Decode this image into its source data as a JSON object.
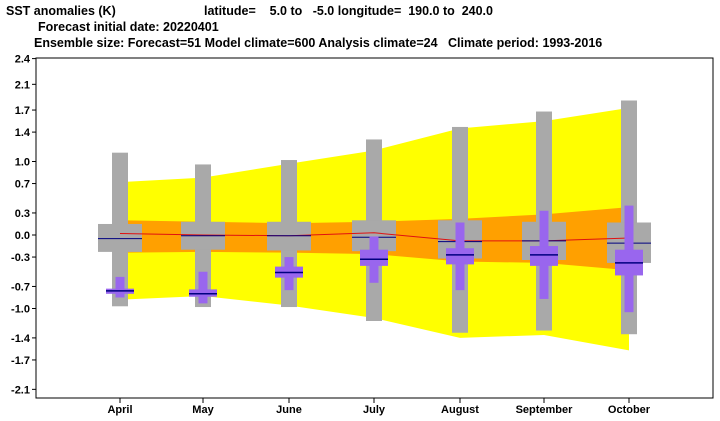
{
  "header": {
    "line1_title": "SST anomalies (K)",
    "line1_latitude": "latitude=    5.0 to   -5.0 longitude=  190.0 to  240.0",
    "line2": "Forecast initial date: 20220401",
    "line3": "Ensemble size: Forecast=51 Model climate=600 Analysis climate=24   Climate period: 1993-2016"
  },
  "colors": {
    "climate_outer": "#ffff00",
    "climate_inner": "#ffa000",
    "climate_median": "#e01010",
    "model_box": "#a9a9a9",
    "forecast_box": "#9966ee",
    "median_line": "#000080"
  },
  "chart_data": {
    "type": "box",
    "categories": [
      "April",
      "May",
      "June",
      "July",
      "August",
      "September",
      "October"
    ],
    "ylim": [
      -2.45,
      2.55
    ],
    "yticks": [
      "2.4",
      "2.1",
      "1.7",
      "1.4",
      "1.0",
      "0.7",
      "0.3",
      "0.0",
      "-0.3",
      "-0.7",
      "-1.0",
      "-1.4",
      "-1.7",
      "-2.1"
    ],
    "ytick_values": [
      2.4,
      2.05,
      1.7,
      1.4,
      1.0,
      0.7,
      0.3,
      0.0,
      -0.3,
      -0.7,
      -1.0,
      -1.4,
      -1.7,
      -2.1
    ],
    "climate_band_outer": {
      "upper": [
        0.72,
        0.78,
        0.97,
        1.15,
        1.45,
        1.55,
        1.73
      ],
      "lower": [
        -0.88,
        -0.83,
        -0.96,
        -1.13,
        -1.4,
        -1.36,
        -1.57
      ]
    },
    "climate_band_inner": {
      "upper": [
        0.2,
        0.18,
        0.16,
        0.18,
        0.22,
        0.28,
        0.38
      ],
      "lower": [
        -0.24,
        -0.23,
        -0.24,
        -0.26,
        -0.36,
        -0.38,
        -0.48
      ]
    },
    "climate_median": [
      0.02,
      0.0,
      -0.01,
      0.03,
      -0.08,
      -0.08,
      -0.04
    ],
    "model_climate": [
      {
        "whisker_low": -0.97,
        "box_low": -0.23,
        "median": -0.05,
        "box_high": 0.15,
        "whisker_high": 1.12
      },
      {
        "whisker_low": -0.98,
        "box_low": -0.2,
        "median": -0.01,
        "box_high": 0.18,
        "whisker_high": 0.96
      },
      {
        "whisker_low": -0.98,
        "box_low": -0.21,
        "median": -0.01,
        "box_high": 0.18,
        "whisker_high": 1.02
      },
      {
        "whisker_low": -1.17,
        "box_low": -0.22,
        "median": -0.03,
        "box_high": 0.2,
        "whisker_high": 1.3
      },
      {
        "whisker_low": -1.33,
        "box_low": -0.32,
        "median": -0.09,
        "box_high": 0.2,
        "whisker_high": 1.47
      },
      {
        "whisker_low": -1.3,
        "box_low": -0.34,
        "median": -0.08,
        "box_high": 0.18,
        "whisker_high": 1.68
      },
      {
        "whisker_low": -1.35,
        "box_low": -0.38,
        "median": -0.11,
        "box_high": 0.17,
        "whisker_high": 1.83
      }
    ],
    "forecast": [
      {
        "whisker_low": -0.85,
        "box_low": -0.8,
        "median": -0.76,
        "box_high": -0.73,
        "whisker_high": -0.57
      },
      {
        "whisker_low": -0.93,
        "box_low": -0.84,
        "median": -0.8,
        "box_high": -0.74,
        "whisker_high": -0.5
      },
      {
        "whisker_low": -0.75,
        "box_low": -0.58,
        "median": -0.51,
        "box_high": -0.43,
        "whisker_high": -0.3
      },
      {
        "whisker_low": -0.65,
        "box_low": -0.42,
        "median": -0.33,
        "box_high": -0.2,
        "whisker_high": -0.02
      },
      {
        "whisker_low": -0.75,
        "box_low": -0.4,
        "median": -0.27,
        "box_high": -0.18,
        "whisker_high": 0.17
      },
      {
        "whisker_low": -0.87,
        "box_low": -0.42,
        "median": -0.27,
        "box_high": -0.15,
        "whisker_high": 0.33
      },
      {
        "whisker_low": -1.05,
        "box_low": -0.55,
        "median": -0.38,
        "box_high": -0.2,
        "whisker_high": 0.4
      }
    ]
  }
}
